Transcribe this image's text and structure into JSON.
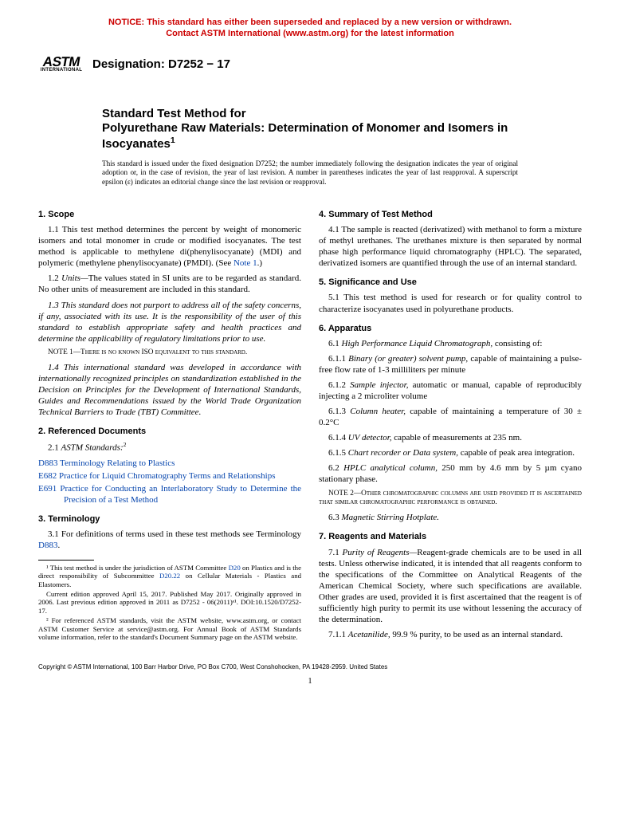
{
  "notice": {
    "line1": "NOTICE: This standard has either been superseded and replaced by a new version or withdrawn.",
    "line2": "Contact ASTM International (www.astm.org) for the latest information",
    "color": "#cc0000"
  },
  "logo": {
    "mark": "ASTM",
    "sub": "INTERNATIONAL"
  },
  "designation": "Designation: D7252 − 17",
  "title": {
    "pre": "Standard Test Method for",
    "main": "Polyurethane Raw Materials: Determination of Monomer and Isomers in Isocyanates",
    "sup": "1"
  },
  "issuance": "This standard is issued under the fixed designation D7252; the number immediately following the designation indicates the year of original adoption or, in the case of revision, the year of last revision. A number in parentheses indicates the year of last reapproval. A superscript epsilon (ε) indicates an editorial change since the last revision or reapproval.",
  "s1": {
    "head": "1. Scope",
    "p11": "1.1 This test method determines the percent by weight of monomeric isomers and total monomer in crude or modified isocyanates. The test method is applicable to methylene di(phenylisocyanate) (MDI) and polymeric (methylene phenylisocyanate) (PMDI). (See ",
    "note1ref": "Note 1",
    "p11b": ".)",
    "p12a": "1.2 ",
    "p12u": "Units—",
    "p12b": "The values stated in SI units are to be regarded as standard. No other units of measurement are included in this standard.",
    "p13": "1.3 This standard does not purport to address all of the safety concerns, if any, associated with its use. It is the responsibility of the user of this standard to establish appropriate safety and health practices and determine the applicability of regulatory limitations prior to use.",
    "note1": "NOTE 1—There is no known ISO equivalent to this standard.",
    "p14": "1.4 This international standard was developed in accordance with internationally recognized principles on standardization established in the Decision on Principles for the Development of International Standards, Guides and Recommendations issued by the World Trade Organization Technical Barriers to Trade (TBT) Committee."
  },
  "s2": {
    "head": "2. Referenced Documents",
    "lead": "2.1 ",
    "leadital": "ASTM Standards:",
    "sup": "2",
    "refs": [
      {
        "code": "D883",
        "title": "Terminology Relating to Plastics"
      },
      {
        "code": "E682",
        "title": "Practice for Liquid Chromatography Terms and Relationships"
      },
      {
        "code": "E691",
        "title": "Practice for Conducting an Interlaboratory Study to Determine the Precision of a Test Method"
      }
    ]
  },
  "s3": {
    "head": "3. Terminology",
    "p31a": "3.1 For definitions of terms used in these test methods see Terminology ",
    "p31link": "D883",
    "p31b": "."
  },
  "fn": {
    "f1a": "¹ This test method is under the jurisdiction of ASTM Committee ",
    "f1l1": "D20",
    "f1b": " on Plastics and is the direct responsibility of Subcommittee ",
    "f1l2": "D20.22",
    "f1c": " on Cellular Materials - Plastics and Elastomers.",
    "f1d": "Current edition approved April 15, 2017. Published May 2017. Originally approved in 2006. Last previous edition approved in 2011 as D7252 - 06(2011)ᵉ¹. DOI:10.1520/D7252-17.",
    "f2": "² For referenced ASTM standards, visit the ASTM website, www.astm.org, or contact ASTM Customer Service at service@astm.org. For Annual Book of ASTM Standards volume information, refer to the standard's Document Summary page on the ASTM website."
  },
  "s4": {
    "head": "4. Summary of Test Method",
    "p41": "4.1 The sample is reacted (derivatized) with methanol to form a mixture of methyl urethanes. The urethanes mixture is then separated by normal phase high performance liquid chromatography (HPLC). The separated, derivatized isomers are quantified through the use of an internal standard."
  },
  "s5": {
    "head": "5. Significance and Use",
    "p51": "5.1 This test method is used for research or for quality control to characterize isocyanates used in polyurethane products."
  },
  "s6": {
    "head": "6. Apparatus",
    "p61a": "6.1 ",
    "p61i": "High Performance Liquid Chromatograph,",
    "p61b": " consisting of:",
    "p611a": "6.1.1 ",
    "p611i": "Binary (or greater) solvent pump,",
    "p611b": " capable of maintaining a pulse-free flow rate of 1-3 milliliters per minute",
    "p612a": "6.1.2 ",
    "p612i": "Sample injector,",
    "p612b": " automatic or manual, capable of reproducibly injecting a 2 microliter volume",
    "p613a": "6.1.3 ",
    "p613i": "Column heater,",
    "p613b": " capable of maintaining a temperature of 30 ± 0.2°C",
    "p614a": "6.1.4 ",
    "p614i": "UV detector,",
    "p614b": " capable of measurements at 235 nm.",
    "p615a": "6.1.5 ",
    "p615i": "Chart recorder or Data system,",
    "p615b": " capable of peak area integration.",
    "p62a": "6.2 ",
    "p62i": "HPLC analytical column,",
    "p62b": " 250 mm by 4.6 mm by 5 µm cyano stationary phase.",
    "note2": "NOTE 2—Other chromatographic columns are used provided it is ascertained that similar chromatographic performance is obtained.",
    "p63a": "6.3 ",
    "p63i": "Magnetic Stirring Hotplate."
  },
  "s7": {
    "head": "7. Reagents and Materials",
    "p71a": "7.1 ",
    "p71i": "Purity of Reagents—",
    "p71b": "Reagent-grade chemicals are to be used in all tests. Unless otherwise indicated, it is intended that all reagents conform to the specifications of the Committee on Analytical Reagents of the American Chemical Society, where such specifications are available. Other grades are used, provided it is first ascertained that the reagent is of sufficiently high purity to permit its use without lessening the accuracy of the determination.",
    "p711a": "7.1.1 ",
    "p711i": "Acetanilide,",
    "p711b": " 99.9 % purity, to be used as an internal standard."
  },
  "copyright": "Copyright © ASTM International, 100 Barr Harbor Drive, PO Box C700, West Conshohocken, PA 19428-2959. United States",
  "pagenum": "1"
}
